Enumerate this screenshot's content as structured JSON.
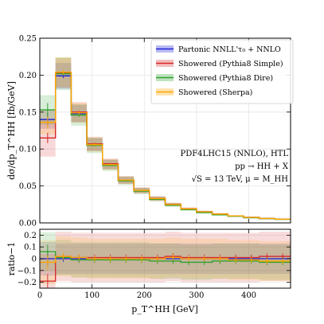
{
  "chart_data": [
    {
      "type": "line",
      "panel": "main",
      "ylabel": "dσ/dp_T^HH [fb/GeV]",
      "xlim": [
        0,
        480
      ],
      "ylim": [
        0,
        0.25
      ],
      "yticks": [
        "0.00",
        "0.05",
        "0.10",
        "0.15",
        "0.20",
        "0.25"
      ],
      "bin_edges": [
        0,
        30,
        60,
        90,
        120,
        150,
        180,
        210,
        240,
        270,
        300,
        330,
        360,
        390,
        420,
        450,
        480
      ],
      "series": [
        {
          "name": "Partonic NNLL'τ₀ + NNLO",
          "color": "#1f1fd6",
          "values": [
            0.14,
            0.199,
            0.148,
            0.106,
            0.079,
            0.058,
            0.044,
            0.033,
            0.025,
            0.019,
            0.015,
            0.012,
            0.0095,
            0.0075,
            0.006,
            0.005
          ]
        },
        {
          "name": "Showered (Pythia8 Simple)",
          "color": "#d62728",
          "values": [
            0.115,
            0.203,
            0.15,
            0.107,
            0.08,
            0.058,
            0.044,
            0.033,
            0.025,
            0.019,
            0.015,
            0.012,
            0.0095,
            0.0075,
            0.006,
            0.005
          ]
        },
        {
          "name": "Showered (Pythia8 Dire)",
          "color": "#2ca02c",
          "values": [
            0.153,
            0.202,
            0.146,
            0.105,
            0.078,
            0.057,
            0.043,
            0.032,
            0.024,
            0.018,
            0.014,
            0.011,
            0.009,
            0.007,
            0.0058,
            0.0048
          ]
        },
        {
          "name": "Showered (Sherpa)",
          "color": "#ffa500",
          "values": [
            0.136,
            0.204,
            0.149,
            0.106,
            0.079,
            0.058,
            0.044,
            0.033,
            0.025,
            0.019,
            0.015,
            0.012,
            0.0095,
            0.0075,
            0.006,
            0.005
          ]
        }
      ],
      "annotations": [
        "PDF4LHC15 (NNLO), HTL",
        "pp → HH + X",
        "√S = 13 TeV, μ = M_HH"
      ],
      "legend_position": "top-right",
      "grid": true
    },
    {
      "type": "line",
      "panel": "ratio",
      "xlabel": "p_T^HH [GeV]",
      "ylabel": "ratio−1",
      "xlim": [
        0,
        480
      ],
      "ylim": [
        -0.25,
        0.25
      ],
      "xticks": [
        "0",
        "100",
        "200",
        "300",
        "400"
      ],
      "yticks": [
        "−0.2",
        "−0.1",
        "0",
        "0.1",
        "0.2"
      ],
      "series": [
        {
          "name": "Partonic NNLL'τ₀ + NNLO",
          "color": "#1f1fd6",
          "values": [
            0,
            0,
            0,
            0,
            0,
            0,
            0,
            0,
            0,
            0,
            0,
            0,
            0,
            0,
            0,
            0
          ]
        },
        {
          "name": "Showered (Pythia8 Simple)",
          "color": "#d62728",
          "values": [
            -0.19,
            0.02,
            0.01,
            0.01,
            0.01,
            0.01,
            0.01,
            0.01,
            0.02,
            0.01,
            0.01,
            0.01,
            0.01,
            0.01,
            0.02,
            0.02
          ]
        },
        {
          "name": "Showered (Pythia8 Dire)",
          "color": "#2ca02c",
          "values": [
            0.06,
            0.01,
            -0.01,
            -0.01,
            -0.01,
            -0.01,
            -0.01,
            -0.02,
            -0.02,
            -0.03,
            -0.03,
            -0.02,
            -0.02,
            -0.02,
            -0.03,
            -0.03
          ]
        },
        {
          "name": "Showered (Sherpa)",
          "color": "#ffa500",
          "values": [
            -0.03,
            0.02,
            0.01,
            0.0,
            0.0,
            0.0,
            0.0,
            0.0,
            0.01,
            0.0,
            0.0,
            0.0,
            -0.01,
            -0.01,
            -0.02,
            -0.02
          ]
        }
      ]
    }
  ]
}
